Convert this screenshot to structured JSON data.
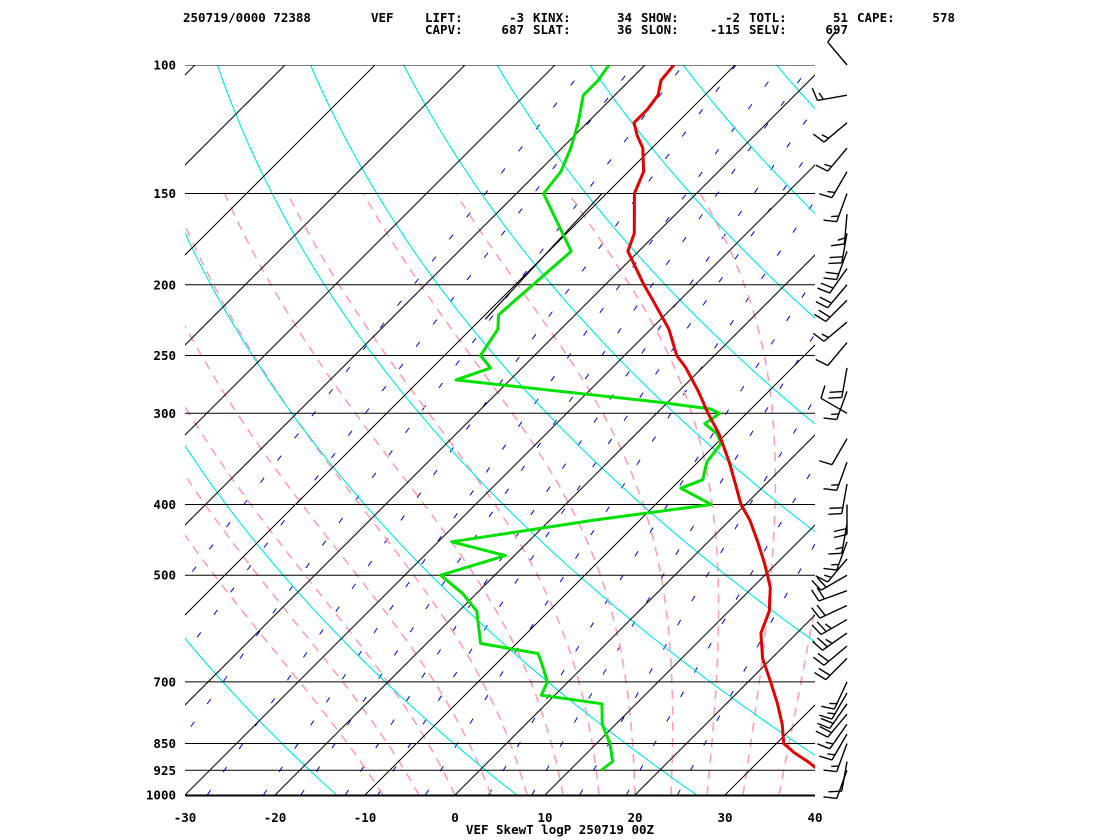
{
  "header": {
    "line1": [
      {
        "text": "250719/0000 72388",
        "pos": "left"
      },
      {
        "text": "VEF",
        "pos": "station"
      },
      {
        "text": "LIFT:",
        "pos": "c1l"
      },
      {
        "text": "-3",
        "pos": "c1v"
      },
      {
        "text": "KINX:",
        "pos": "c2l"
      },
      {
        "text": "34",
        "pos": "c2v"
      },
      {
        "text": "SHOW:",
        "pos": "c3l"
      },
      {
        "text": "-2",
        "pos": "c3v"
      },
      {
        "text": "TOTL:",
        "pos": "c4l"
      },
      {
        "text": "51",
        "pos": "c4v"
      },
      {
        "text": "CAPE:",
        "pos": "c5l"
      },
      {
        "text": "578",
        "pos": "c5v"
      }
    ],
    "line2": [
      {
        "text": "CAPV:",
        "pos": "c1l"
      },
      {
        "text": "687",
        "pos": "c1v"
      },
      {
        "text": "SLAT:",
        "pos": "c2l"
      },
      {
        "text": "36",
        "pos": "c2v"
      },
      {
        "text": "SLON:",
        "pos": "c3l"
      },
      {
        "text": "-115",
        "pos": "c3v"
      },
      {
        "text": "SELV:",
        "pos": "c4l"
      },
      {
        "text": "697",
        "pos": "c4v"
      }
    ]
  },
  "chart_data": {
    "type": "skewt_logp",
    "xlabel": "VEF SkewT logP 250719 00Z",
    "pressure_levels_hpa": [
      100,
      150,
      200,
      250,
      300,
      400,
      500,
      700,
      850,
      925,
      1000
    ],
    "pressure_tick_labels": [
      "100",
      "150",
      "200",
      "250",
      "300",
      "400",
      "500",
      "700",
      "850",
      "925",
      "1000"
    ],
    "temperature_ticks_c": [
      -30,
      -20,
      -10,
      0,
      10,
      20,
      30,
      40
    ],
    "temperature_tick_labels": [
      "-30",
      "-20",
      "-10",
      "0",
      "10",
      "20",
      "30",
      "40"
    ],
    "xlim_c": [
      -30,
      40
    ],
    "ylim_hpa": [
      1000,
      100
    ],
    "y_scale": "log",
    "colors": {
      "temperature": "#e00000",
      "dewpoint": "#00e000",
      "isotherms": "#000000",
      "isobars": "#000000",
      "dry_adiabats": "#00e5e5",
      "moist_adiabats": "#ffa0b4",
      "mixing_ratio": "#0000c8",
      "wind_barbs": "#000000"
    },
    "temperature_profile": [
      {
        "p": 925,
        "t": 37.7
      },
      {
        "p": 900,
        "t": 35.5
      },
      {
        "p": 875,
        "t": 33.0
      },
      {
        "p": 850,
        "t": 30.8
      },
      {
        "p": 800,
        "t": 28.5
      },
      {
        "p": 750,
        "t": 25.7
      },
      {
        "p": 700,
        "t": 22.5
      },
      {
        "p": 650,
        "t": 19.0
      },
      {
        "p": 600,
        "t": 16.0
      },
      {
        "p": 560,
        "t": 14.5
      },
      {
        "p": 520,
        "t": 12.0
      },
      {
        "p": 500,
        "t": 10.3
      },
      {
        "p": 480,
        "t": 8.5
      },
      {
        "p": 450,
        "t": 5.5
      },
      {
        "p": 420,
        "t": 2.2
      },
      {
        "p": 400,
        "t": -0.5
      },
      {
        "p": 380,
        "t": -2.8
      },
      {
        "p": 350,
        "t": -6.5
      },
      {
        "p": 320,
        "t": -10.8
      },
      {
        "p": 300,
        "t": -14.3
      },
      {
        "p": 280,
        "t": -17.8
      },
      {
        "p": 260,
        "t": -21.8
      },
      {
        "p": 250,
        "t": -24.2
      },
      {
        "p": 230,
        "t": -28.0
      },
      {
        "p": 210,
        "t": -33.0
      },
      {
        "p": 200,
        "t": -35.7
      },
      {
        "p": 180,
        "t": -41.2
      },
      {
        "p": 170,
        "t": -42.5
      },
      {
        "p": 150,
        "t": -46.9
      },
      {
        "p": 140,
        "t": -48.3
      },
      {
        "p": 130,
        "t": -51.0
      },
      {
        "p": 125,
        "t": -53.0
      },
      {
        "p": 120,
        "t": -54.8
      },
      {
        "p": 115,
        "t": -54.8
      },
      {
        "p": 110,
        "t": -55.2
      },
      {
        "p": 105,
        "t": -56.5
      },
      {
        "p": 100,
        "t": -56.8
      }
    ],
    "dewpoint_profile": [
      {
        "p": 925,
        "t": 13.5
      },
      {
        "p": 900,
        "t": 13.8
      },
      {
        "p": 850,
        "t": 11.5
      },
      {
        "p": 800,
        "t": 8.5
      },
      {
        "p": 750,
        "t": 6.2
      },
      {
        "p": 730,
        "t": -1.5
      },
      {
        "p": 700,
        "t": -2.3
      },
      {
        "p": 660,
        "t": -5.0
      },
      {
        "p": 640,
        "t": -6.5
      },
      {
        "p": 620,
        "t": -14.0
      },
      {
        "p": 560,
        "t": -18.0
      },
      {
        "p": 530,
        "t": -21.5
      },
      {
        "p": 500,
        "t": -26.0
      },
      {
        "p": 470,
        "t": -21.0
      },
      {
        "p": 450,
        "t": -28.5
      },
      {
        "p": 420,
        "t": -15.0
      },
      {
        "p": 400,
        "t": -3.8
      },
      {
        "p": 380,
        "t": -9.0
      },
      {
        "p": 370,
        "t": -7.5
      },
      {
        "p": 350,
        "t": -9.0
      },
      {
        "p": 330,
        "t": -9.5
      },
      {
        "p": 320,
        "t": -11.0
      },
      {
        "p": 310,
        "t": -13.5
      },
      {
        "p": 300,
        "t": -13.0
      },
      {
        "p": 296,
        "t": -14.5
      },
      {
        "p": 290,
        "t": -20.5
      },
      {
        "p": 270,
        "t": -46.0
      },
      {
        "p": 260,
        "t": -43.5
      },
      {
        "p": 250,
        "t": -46.0
      },
      {
        "p": 230,
        "t": -47.0
      },
      {
        "p": 220,
        "t": -48.5
      },
      {
        "p": 180,
        "t": -47.5
      },
      {
        "p": 150,
        "t": -57.0
      },
      {
        "p": 140,
        "t": -57.5
      },
      {
        "p": 130,
        "t": -59.0
      },
      {
        "p": 120,
        "t": -61.0
      },
      {
        "p": 110,
        "t": -63.5
      },
      {
        "p": 105,
        "t": -63.5
      },
      {
        "p": 100,
        "t": -64.0
      }
    ],
    "parcel_segment": [
      {
        "p": 223,
        "t": -49.5
      },
      {
        "p": 150,
        "t": -50.5
      }
    ],
    "wind_barbs": [
      {
        "p": 925,
        "dir": 200,
        "spd": 10
      },
      {
        "p": 900,
        "dir": 190,
        "spd": 10
      },
      {
        "p": 850,
        "dir": 200,
        "spd": 15
      },
      {
        "p": 825,
        "dir": 210,
        "spd": 15
      },
      {
        "p": 800,
        "dir": 215,
        "spd": 15
      },
      {
        "p": 775,
        "dir": 220,
        "spd": 20
      },
      {
        "p": 750,
        "dir": 215,
        "spd": 20
      },
      {
        "p": 725,
        "dir": 210,
        "spd": 15
      },
      {
        "p": 700,
        "dir": 205,
        "spd": 15
      },
      {
        "p": 650,
        "dir": 225,
        "spd": 20
      },
      {
        "p": 625,
        "dir": 230,
        "spd": 20
      },
      {
        "p": 600,
        "dir": 235,
        "spd": 25
      },
      {
        "p": 575,
        "dir": 240,
        "spd": 25
      },
      {
        "p": 550,
        "dir": 245,
        "spd": 20
      },
      {
        "p": 525,
        "dir": 250,
        "spd": 20
      },
      {
        "p": 500,
        "dir": 240,
        "spd": 20
      },
      {
        "p": 475,
        "dir": 220,
        "spd": 15
      },
      {
        "p": 450,
        "dir": 200,
        "spd": 15
      },
      {
        "p": 425,
        "dir": 190,
        "spd": 15
      },
      {
        "p": 400,
        "dir": 180,
        "spd": 20
      },
      {
        "p": 375,
        "dir": 190,
        "spd": 20
      },
      {
        "p": 350,
        "dir": 200,
        "spd": 15
      },
      {
        "p": 325,
        "dir": 210,
        "spd": 10
      },
      {
        "p": 300,
        "dir": 300,
        "spd": 10
      },
      {
        "p": 280,
        "dir": 200,
        "spd": 15
      },
      {
        "p": 260,
        "dir": 190,
        "spd": 20
      },
      {
        "p": 240,
        "dir": 220,
        "spd": 10
      },
      {
        "p": 225,
        "dir": 230,
        "spd": 15
      },
      {
        "p": 210,
        "dir": 225,
        "spd": 20
      },
      {
        "p": 200,
        "dir": 220,
        "spd": 20
      },
      {
        "p": 190,
        "dir": 215,
        "spd": 20
      },
      {
        "p": 180,
        "dir": 200,
        "spd": 20
      },
      {
        "p": 170,
        "dir": 190,
        "spd": 20
      },
      {
        "p": 160,
        "dir": 185,
        "spd": 15
      },
      {
        "p": 150,
        "dir": 200,
        "spd": 15
      },
      {
        "p": 140,
        "dir": 210,
        "spd": 15
      },
      {
        "p": 130,
        "dir": 220,
        "spd": 15
      },
      {
        "p": 120,
        "dir": 230,
        "spd": 15
      },
      {
        "p": 110,
        "dir": 260,
        "spd": 15
      },
      {
        "p": 100,
        "dir": 320,
        "spd": 10
      }
    ]
  }
}
